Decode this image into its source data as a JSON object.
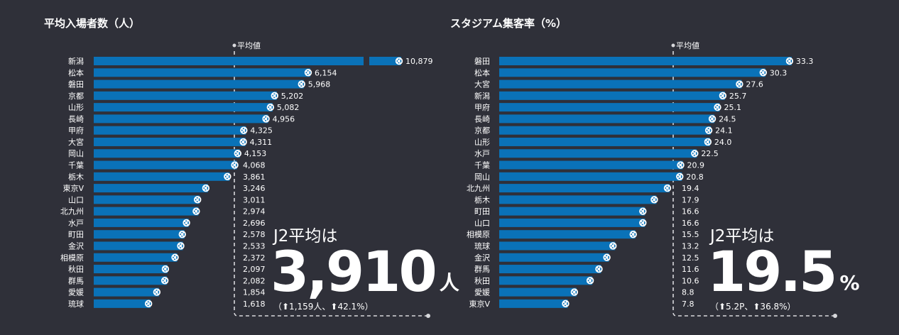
{
  "colors": {
    "bar": "#0a72b8",
    "background": "#2f3039",
    "guide": "#d8d8dc"
  },
  "chart_data": [
    {
      "type": "bar",
      "orientation": "horizontal",
      "title": "平均入場者数（人）",
      "average_label": "平均値",
      "average": 3910,
      "categories": [
        "新潟",
        "松本",
        "磐田",
        "京都",
        "山形",
        "長崎",
        "甲府",
        "大宮",
        "岡山",
        "千葉",
        "栃木",
        "東京V",
        "山口",
        "北九州",
        "水戸",
        "町田",
        "金沢",
        "相模原",
        "秋田",
        "群馬",
        "愛媛",
        "琉球"
      ],
      "values": [
        10879,
        6154,
        5968,
        5202,
        5082,
        4956,
        4325,
        4311,
        4153,
        4068,
        3861,
        3246,
        3011,
        2974,
        2696,
        2578,
        2533,
        2372,
        2097,
        2082,
        1854,
        1618
      ],
      "value_labels": [
        "10,879",
        "6,154",
        "5,968",
        "5,202",
        "5,082",
        "4,956",
        "4,325",
        "4,311",
        "4,153",
        "4,068",
        "3,861",
        "3,246",
        "3,011",
        "2,974",
        "2,696",
        "2,578",
        "2,533",
        "2,372",
        "2,097",
        "2,082",
        "1,854",
        "1,618"
      ],
      "axis_break_on_first": true,
      "summary": {
        "lead": "J2平均は",
        "value": "3,910",
        "unit": "人",
        "change": "（⬆1,159人、⬆42.1%）"
      }
    },
    {
      "type": "bar",
      "orientation": "horizontal",
      "title": "スタジアム集客率（%）",
      "average_label": "平均値",
      "average": 19.5,
      "categories": [
        "磐田",
        "松本",
        "大宮",
        "新潟",
        "甲府",
        "長崎",
        "京都",
        "山形",
        "水戸",
        "千葉",
        "岡山",
        "北九州",
        "栃木",
        "町田",
        "山口",
        "相模原",
        "琉球",
        "金沢",
        "群馬",
        "秋田",
        "愛媛",
        "東京V"
      ],
      "values": [
        33.3,
        30.3,
        27.6,
        25.7,
        25.1,
        24.5,
        24.1,
        24.0,
        22.5,
        20.9,
        20.8,
        19.4,
        17.9,
        16.6,
        16.6,
        15.5,
        13.2,
        12.5,
        11.6,
        10.6,
        8.8,
        7.8
      ],
      "value_labels": [
        "33.3",
        "30.3",
        "27.6",
        "25.7",
        "25.1",
        "24.5",
        "24.1",
        "24.0",
        "22.5",
        "20.9",
        "20.8",
        "19.4",
        "17.9",
        "16.6",
        "16.6",
        "15.5",
        "13.2",
        "12.5",
        "11.6",
        "10.6",
        "8.8",
        "7.8"
      ],
      "axis_break_on_first": false,
      "summary": {
        "lead": "J2平均は",
        "value": "19.5",
        "unit": "%",
        "change": "（⬆5.2P、⬆36.8%）"
      }
    }
  ]
}
